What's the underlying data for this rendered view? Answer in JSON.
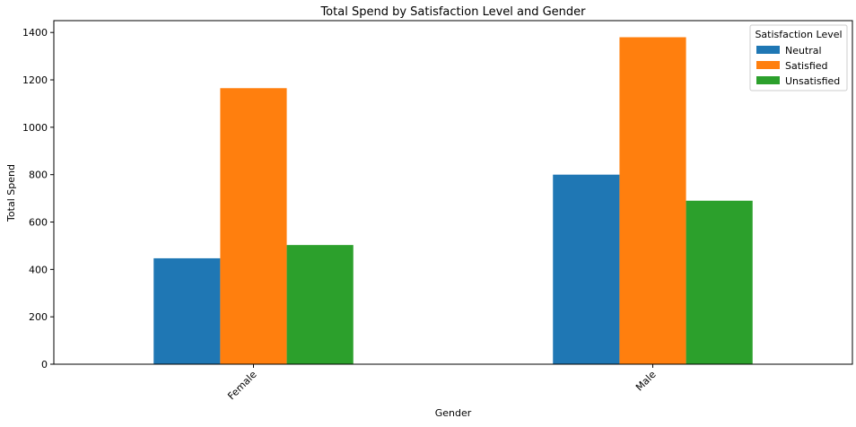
{
  "chart_data": {
    "type": "bar",
    "title": "Total Spend by Satisfaction Level and Gender",
    "xlabel": "Gender",
    "ylabel": "Total Spend",
    "categories": [
      "Female",
      "Male"
    ],
    "series": [
      {
        "name": "Neutral",
        "values": [
          447,
          800
        ],
        "color": "#1f77b4"
      },
      {
        "name": "Satisfied",
        "values": [
          1165,
          1380
        ],
        "color": "#ff7f0e"
      },
      {
        "name": "Unsatisfied",
        "values": [
          503,
          690
        ],
        "color": "#2ca02c"
      }
    ],
    "ylim": [
      0,
      1450
    ],
    "yticks": [
      0,
      200,
      400,
      600,
      800,
      1000,
      1200,
      1400
    ],
    "legend": {
      "title": "Satisfaction Level",
      "position": "top-right"
    },
    "grid": false
  }
}
